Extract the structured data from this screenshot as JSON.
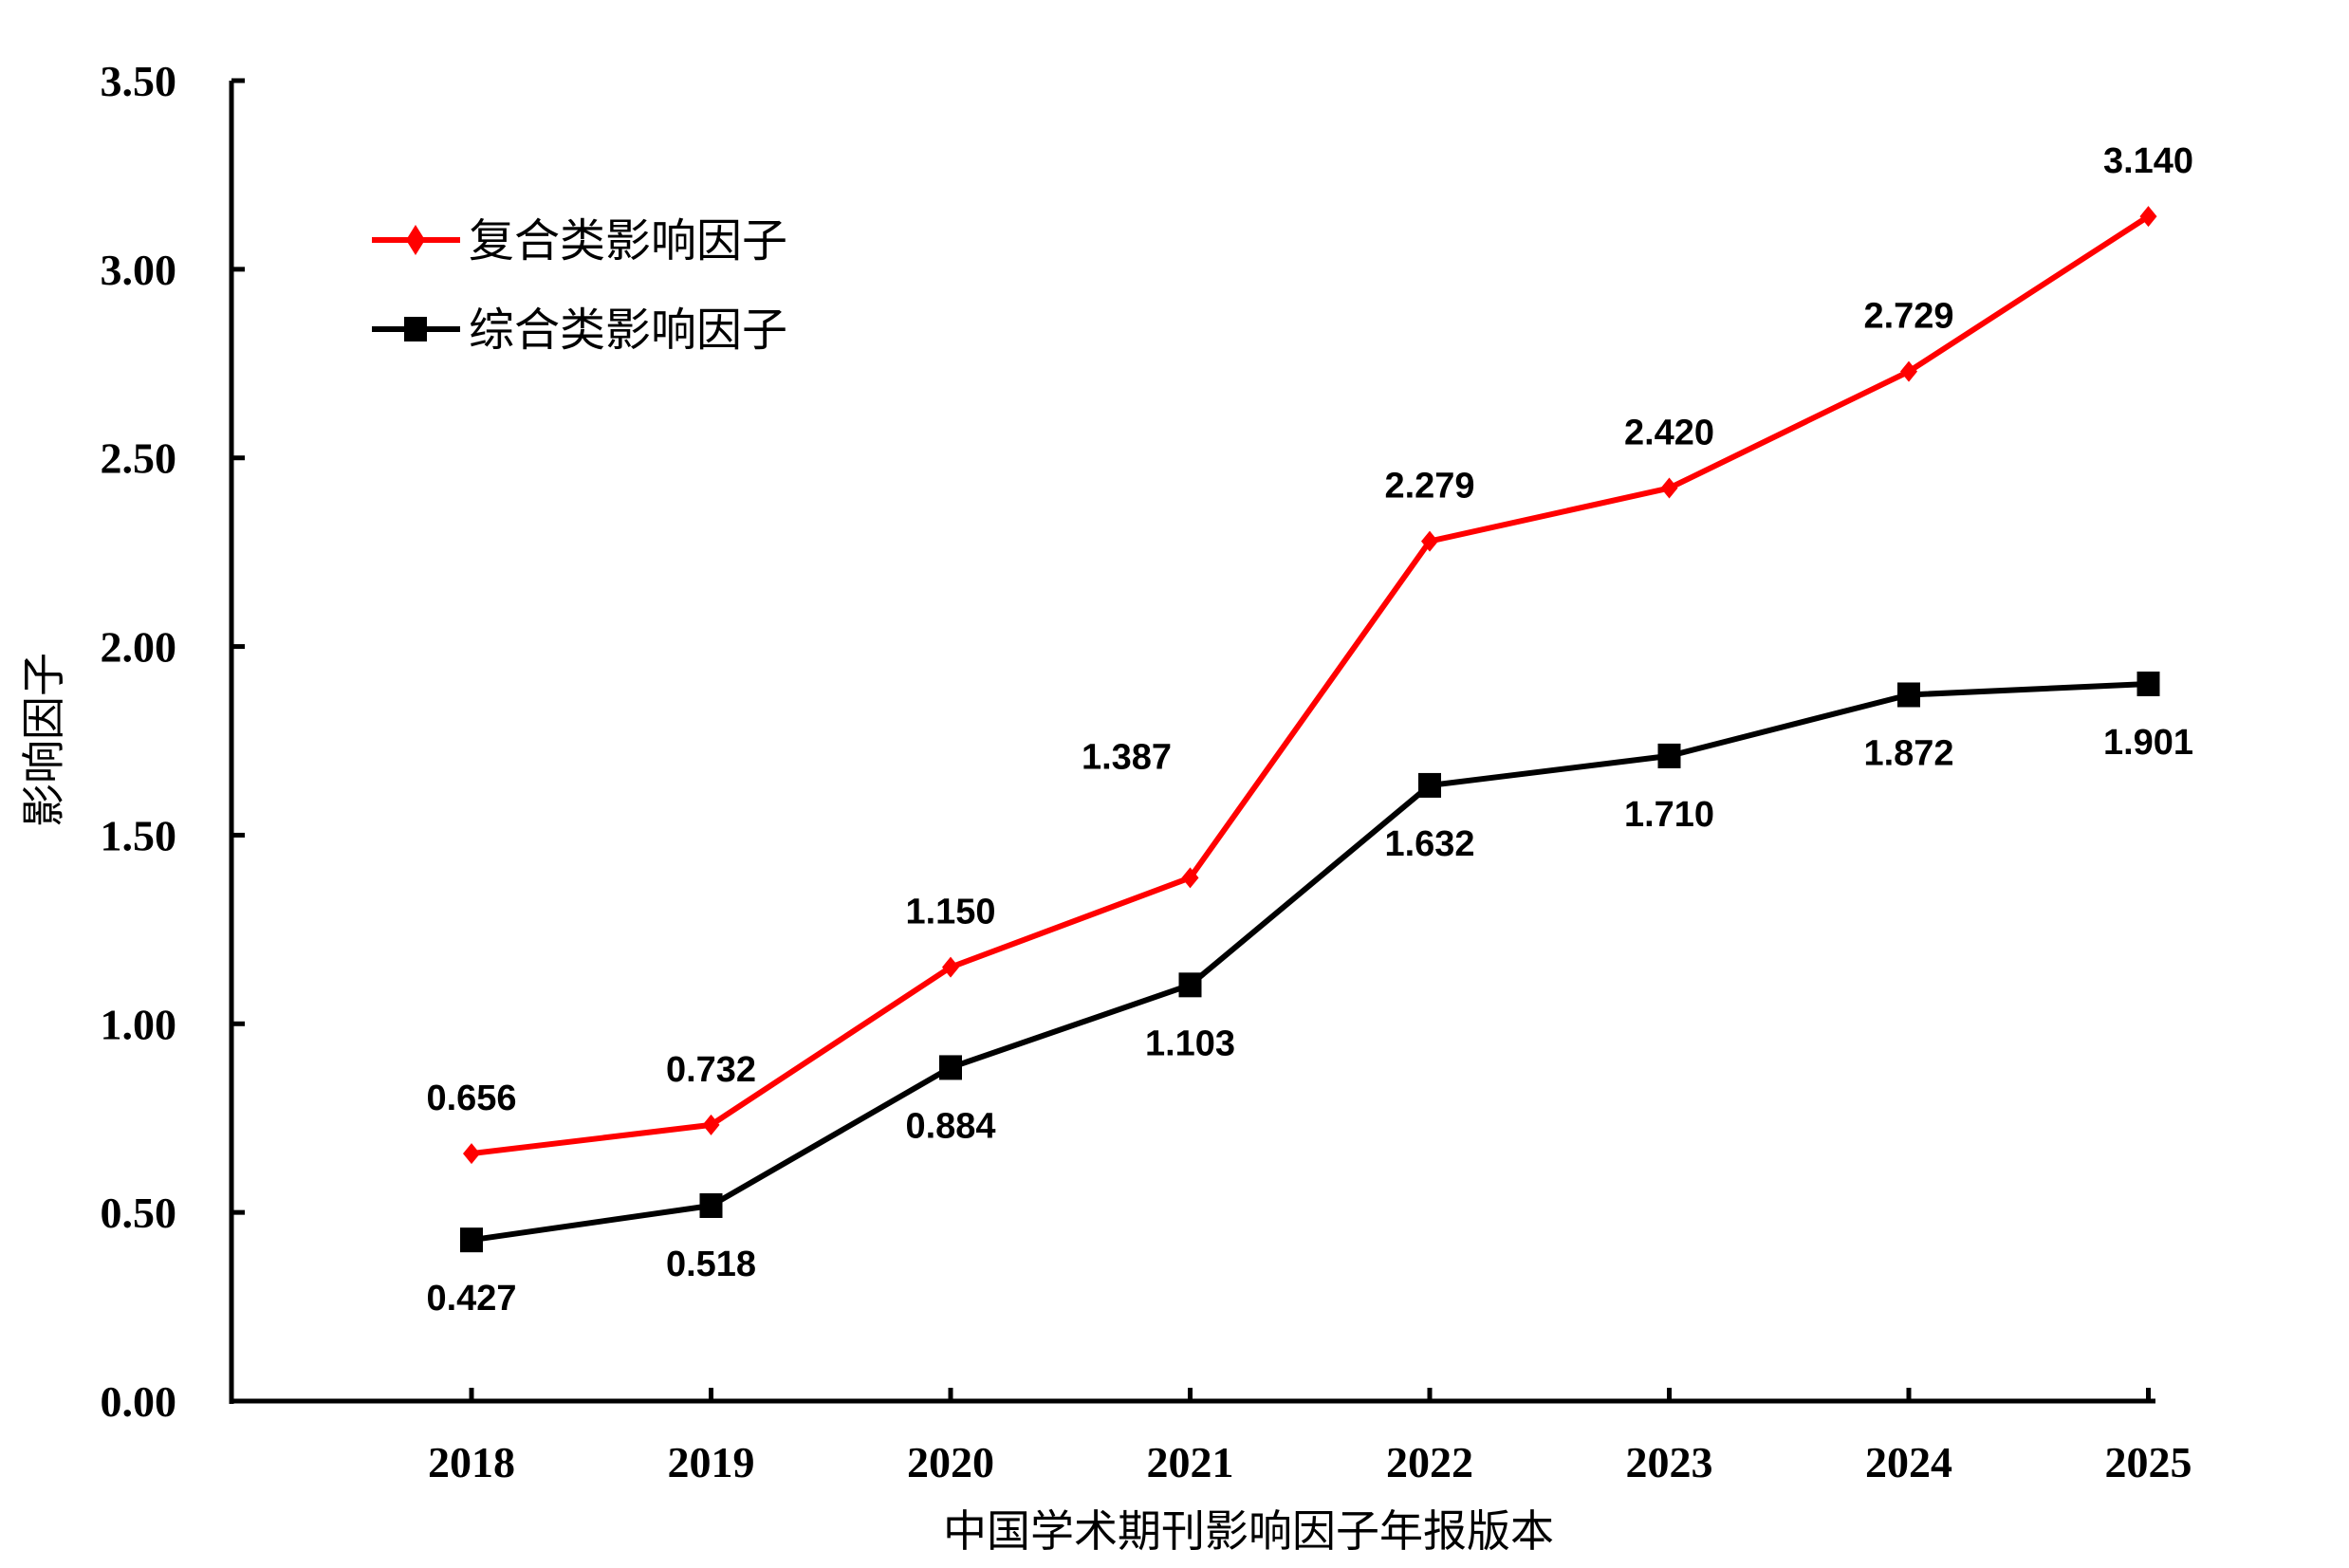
{
  "chart_data": {
    "type": "line",
    "xlabel": "中国学术期刊影响因子年报版本",
    "ylabel": "影响因子",
    "categories": [
      "2018",
      "2019",
      "2020",
      "2021",
      "2022",
      "2023",
      "2024",
      "2025"
    ],
    "ylim": [
      0,
      3.5
    ],
    "yticks": [
      "0.00",
      "0.50",
      "1.00",
      "1.50",
      "2.00",
      "2.50",
      "3.00",
      "3.50"
    ],
    "grid": false,
    "legend_position": "top-left",
    "series": [
      {
        "name": "复合类影响因子",
        "color": "#ff0000",
        "marker": "diamond",
        "values": [
          0.656,
          0.732,
          1.15,
          1.387,
          2.279,
          2.42,
          2.729,
          3.14
        ],
        "labels": [
          "0.656",
          "0.732",
          "1.150",
          "1.387",
          "2.279",
          "2.420",
          "2.729",
          "3.140"
        ]
      },
      {
        "name": "综合类影响因子",
        "color": "#000000",
        "marker": "square",
        "values": [
          0.427,
          0.518,
          0.884,
          1.103,
          1.632,
          1.71,
          1.872,
          1.901
        ],
        "labels": [
          "0.427",
          "0.518",
          "0.884",
          "1.103",
          "1.632",
          "1.710",
          "1.872",
          "1.901"
        ]
      }
    ]
  }
}
